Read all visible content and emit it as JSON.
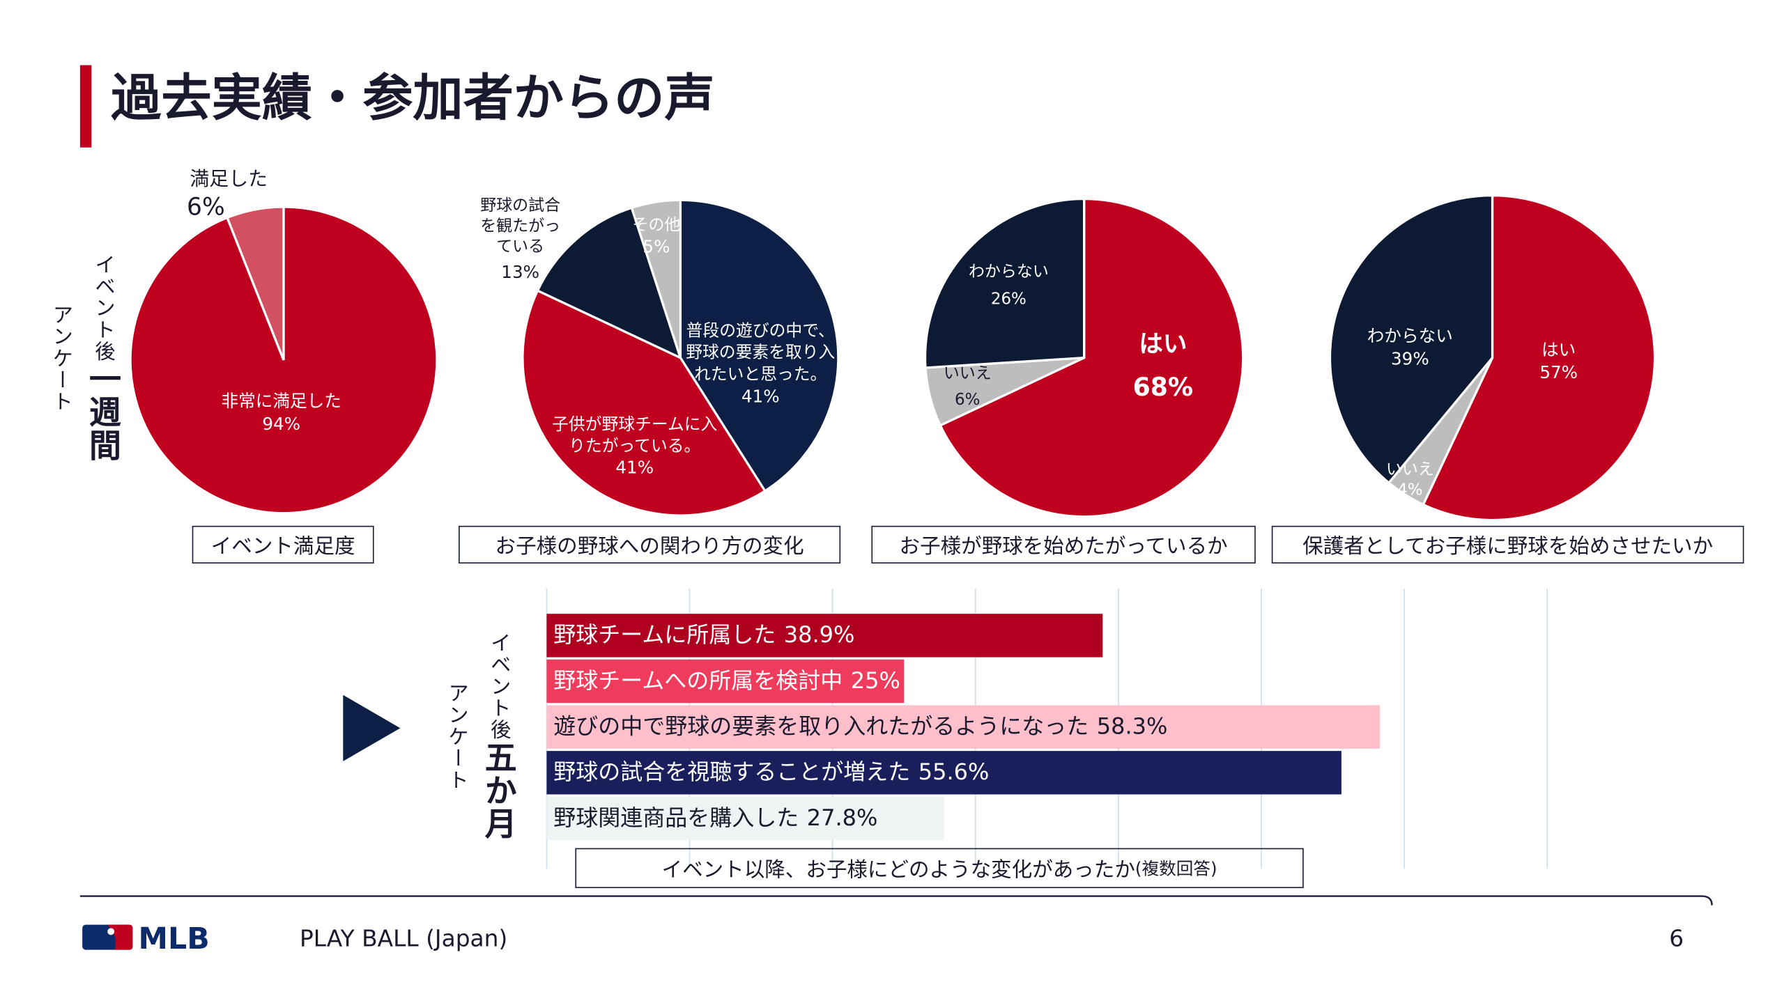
{
  "header": {
    "title": "過去実績・参加者からの声"
  },
  "survey_labels": [
    {
      "prefix": "イベント後",
      "period": "一週間",
      "suffix": "アンケート"
    },
    {
      "prefix": "イベント後",
      "period": "五か月",
      "suffix": "アンケート"
    }
  ],
  "chart_data": [
    {
      "type": "pie",
      "title": "イベント満足度",
      "categories": [
        "非常に満足した",
        "満足した"
      ],
      "values": [
        94,
        6
      ],
      "value_labels": [
        "94%",
        "6%"
      ],
      "colors": [
        "#c0001f",
        "#d2505f"
      ]
    },
    {
      "type": "pie",
      "title": "お子様の野球への関わり方の変化",
      "categories": [
        "普段の遊びの中で、野球の要素を取り入れたいと思った。",
        "子供が野球チームに入りたがっている。",
        "野球の試合を観たがっている",
        "その他"
      ],
      "values": [
        41,
        41,
        13,
        5
      ],
      "value_labels": [
        "41%",
        "41%",
        "13%",
        "5%"
      ],
      "colors": [
        "#0d1f44",
        "#c0001f",
        "#0c1a33",
        "#bdbdbd"
      ]
    },
    {
      "type": "pie",
      "title": "お子様が野球を始めたがっているか",
      "categories": [
        "はい",
        "いいえ",
        "わからない"
      ],
      "values": [
        68,
        6,
        26
      ],
      "value_labels": [
        "68%",
        "6%",
        "26%"
      ],
      "colors": [
        "#c0001f",
        "#bdbdbd",
        "#0c1a33"
      ]
    },
    {
      "type": "pie",
      "title": "保護者としてお子様に野球を始めさせたいか",
      "categories": [
        "はい",
        "いいえ",
        "わからない"
      ],
      "values": [
        57,
        4,
        39
      ],
      "value_labels": [
        "57%",
        "4%",
        "39%"
      ],
      "colors": [
        "#c0001f",
        "#bdbdbd",
        "#0c1a33"
      ]
    },
    {
      "type": "hbar",
      "title": "イベント以降、お子様にどのような変化があったか",
      "note": "(複数回答)",
      "categories": [
        "野球チームに所属した",
        "野球チームへの所属を検討中",
        "遊びの中で野球の要素を取り入れたがるようになった",
        "野球の試合を視聴することが増えた",
        "野球関連商品を購入した"
      ],
      "values": [
        38.9,
        25,
        58.3,
        55.6,
        27.8
      ],
      "value_labels": [
        "38.9%",
        "25%",
        "58.3%",
        "55.6%",
        "27.8%"
      ],
      "colors": [
        "#b00020",
        "#f03c5c",
        "#ffc0cc",
        "#1a1f5c",
        "#eef3f3"
      ],
      "xlim": [
        0,
        70
      ],
      "xticks": [
        0,
        10,
        20,
        30,
        40,
        50,
        60,
        70
      ],
      "grid": true
    }
  ],
  "footer": {
    "logo": "MLB",
    "text": "PLAY BALL (Japan)",
    "page": "6"
  }
}
